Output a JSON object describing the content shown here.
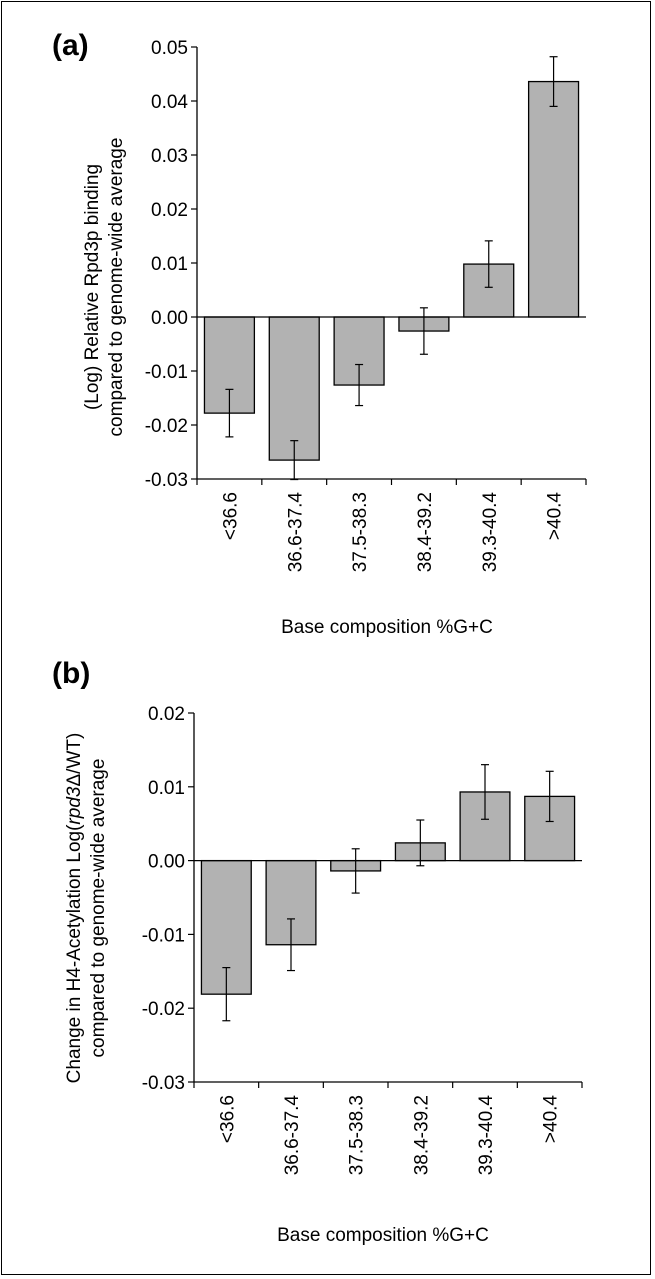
{
  "panels": [
    {
      "panel_label": "(a)",
      "ylabel_line1": "(Log) Relative Rpd3p binding",
      "ylabel_line2": "compared to genome-wide average",
      "xlabel": "Base composition %G+C"
    },
    {
      "panel_label": "(b)",
      "ylabel_line1_parts": [
        "Change in H4-Acetylation Log(",
        "rpd3",
        "Δ",
        "/WT)"
      ],
      "ylabel_line2": "compared to genome-wide average",
      "xlabel": "Base composition %G+C"
    }
  ],
  "chart_data": [
    {
      "type": "bar",
      "categories": [
        "<36.6",
        "36.6-37.4",
        "37.5-38.3",
        "38.4-39.2",
        "39.3-40.4",
        ">40.4"
      ],
      "values": [
        -0.0178,
        -0.0265,
        -0.0126,
        -0.0026,
        0.0098,
        0.0436
      ],
      "error": [
        0.0044,
        0.0036,
        0.0038,
        0.0043,
        0.0043,
        0.0046
      ],
      "ylim": [
        -0.03,
        0.05
      ],
      "yticks": [
        "0.05",
        "0.04",
        "0.03",
        "0.02",
        "0.01",
        "0.00",
        "-0.01",
        "-0.02",
        "-0.03"
      ],
      "bar_color": "#b2b2b2"
    },
    {
      "type": "bar",
      "categories": [
        "<36.6",
        "36.6-37.4",
        "37.5-38.3",
        "38.4-39.2",
        "39.3-40.4",
        ">40.4"
      ],
      "values": [
        -0.0181,
        -0.0114,
        -0.0014,
        0.0024,
        0.0093,
        0.0087
      ],
      "error": [
        0.0036,
        0.0035,
        0.003,
        0.0031,
        0.0037,
        0.0034
      ],
      "ylim": [
        -0.03,
        0.02
      ],
      "yticks": [
        "0.02",
        "0.01",
        "0.00",
        "-0.01",
        "-0.02",
        "-0.03"
      ],
      "bar_color": "#b2b2b2"
    }
  ]
}
